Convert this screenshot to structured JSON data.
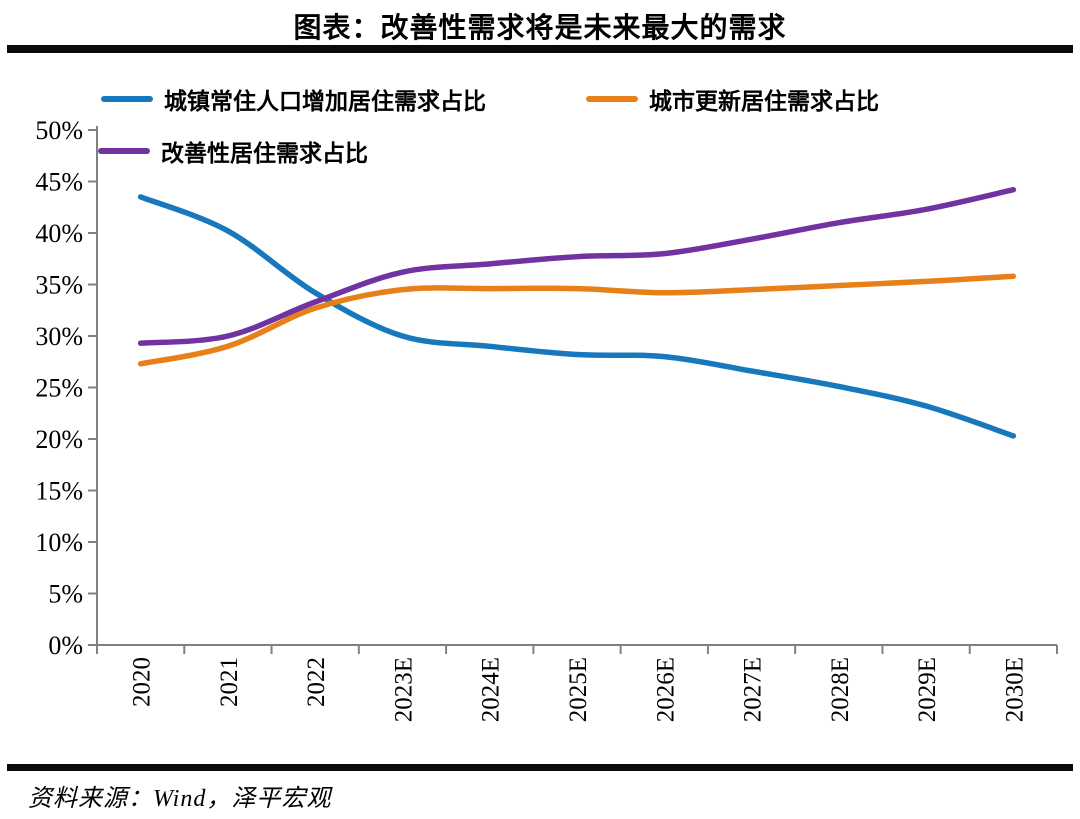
{
  "page": {
    "title": "图表：改善性需求将是未来最大的需求",
    "source": "资料来源：Wind，泽平宏观"
  },
  "chart_data": {
    "type": "line",
    "title": "图表：改善性需求将是未来最大的需求",
    "categories": [
      "2020",
      "2021",
      "2022",
      "2023E",
      "2024E",
      "2025E",
      "2026E",
      "2027E",
      "2028E",
      "2029E",
      "2030E"
    ],
    "series": [
      {
        "name": "城镇常住人口增加居住需求占比",
        "color": "#1878BD",
        "values": [
          43.5,
          40.2,
          34.2,
          30.0,
          29.0,
          28.2,
          28.0,
          26.6,
          25.1,
          23.2,
          20.3
        ]
      },
      {
        "name": "城市更新居住需求占比",
        "color": "#E8801A",
        "values": [
          27.3,
          29.0,
          32.7,
          34.5,
          34.6,
          34.6,
          34.2,
          34.5,
          34.9,
          35.3,
          35.8
        ]
      },
      {
        "name": "改善性居住需求占比",
        "color": "#7233A2",
        "values": [
          29.3,
          30.0,
          33.3,
          36.2,
          37.0,
          37.7,
          38.0,
          39.4,
          41.0,
          42.3,
          44.2
        ]
      }
    ],
    "ylabel": "",
    "xlabel": "",
    "ylim": [
      0,
      50
    ],
    "y_tick_step": 5,
    "y_tick_labels": [
      "0%",
      "5%",
      "10%",
      "15%",
      "20%",
      "25%",
      "30%",
      "35%",
      "40%",
      "45%",
      "50%"
    ],
    "x_label_rotation": -90,
    "grid": false,
    "legend_position": "top-left",
    "source": "资料来源：Wind，泽平宏观"
  },
  "colors": {
    "axis": "#808080",
    "divider": "#0a0a0a",
    "text": "#000000",
    "background": "#ffffff"
  }
}
